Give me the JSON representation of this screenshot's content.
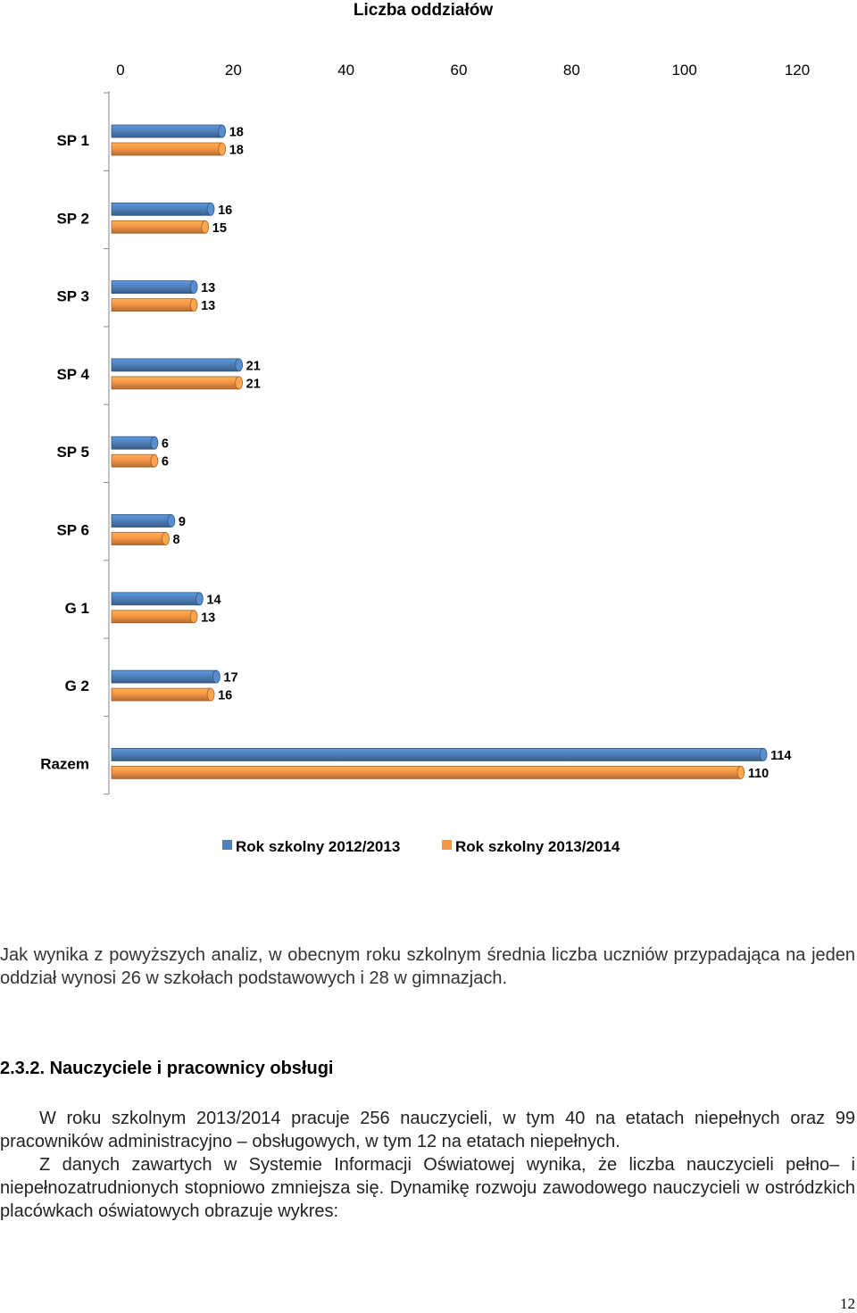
{
  "chart_data": {
    "type": "bar",
    "orientation": "horizontal",
    "title": "Liczba oddziałów",
    "categories": [
      "SP 1",
      "SP 2",
      "SP 3",
      "SP 4",
      "SP 5",
      "SP 6",
      "G 1",
      "G 2",
      "Razem"
    ],
    "series": [
      {
        "name": "Rok szkolny 2012/2013",
        "color": "#4f81bd",
        "values": [
          18,
          16,
          13,
          21,
          6,
          9,
          14,
          17,
          114
        ]
      },
      {
        "name": "Rok szkolny 2013/2014",
        "color": "#f79646",
        "values": [
          18,
          15,
          13,
          21,
          6,
          8,
          13,
          16,
          110
        ]
      }
    ],
    "xlim": [
      0,
      120
    ],
    "xticks": [
      0,
      20,
      40,
      60,
      80,
      100,
      120
    ],
    "xaxis_position": "top",
    "legend_position": "bottom",
    "grid": false,
    "data_labels": true
  },
  "document": {
    "analysis_paragraph": "Jak wynika z powyższych analiz, w obecnym roku szkolnym średnia liczba uczniów przypadająca na jeden oddział wynosi 26 w szkołach podstawowych i 28 w gimnazjach.",
    "section_heading": "2.3.2. Nauczyciele i pracownicy obsługi",
    "paragraph_1": "W roku szkolnym 2013/2014 pracuje 256 nauczycieli, w tym 40 na etatach niepełnych oraz 99 pracowników administracyjno – obsługowych, w tym 12 na etatach niepełnych.",
    "paragraph_2": "Z danych zawartych w Systemie Informacji Oświatowej wynika, że liczba nauczycieli pełno– i niepełnozatrudnionych stopniowo zmniejsza się. Dynamikę rozwoju zawodowego nauczycieli w ostródzkich placówkach oświatowych obrazuje wykres:",
    "page_number": "12"
  }
}
